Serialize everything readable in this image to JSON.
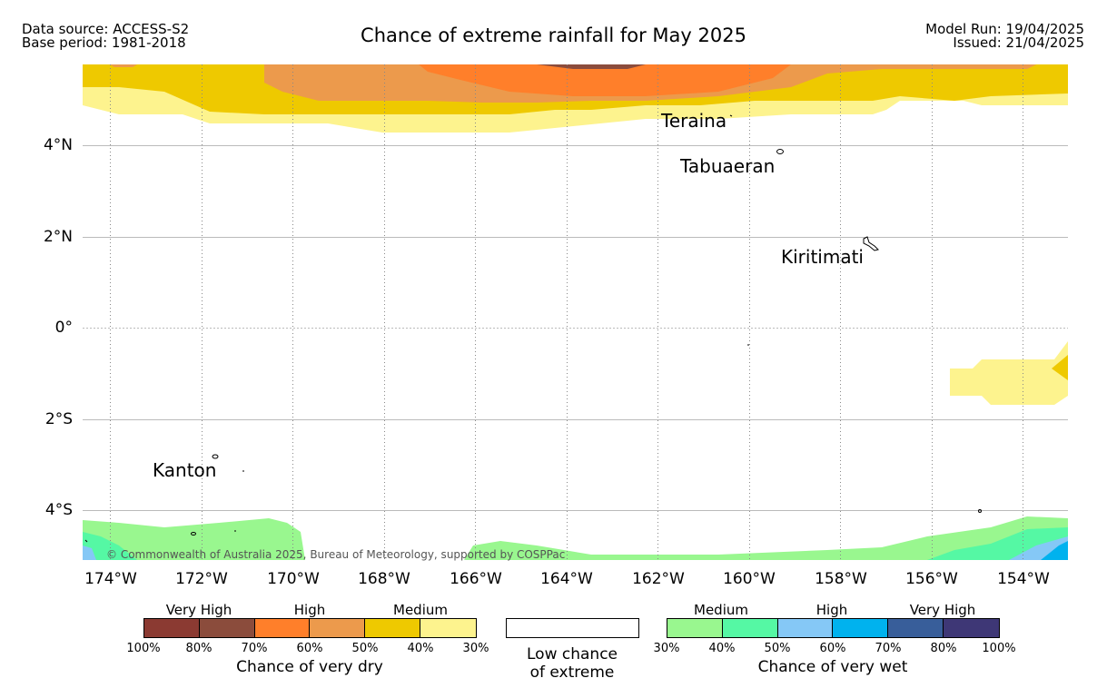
{
  "header": {
    "source": "Data source: ACCESS-S2",
    "base_period": "Base period: 1981-2018",
    "title": "Chance of extreme rainfall for May 2025",
    "model_run": "Model Run: 19/04/2025",
    "issued": "Issued: 21/04/2025"
  },
  "map": {
    "lat_ticks": [
      "4°N",
      "2°N",
      "0°",
      "2°S",
      "4°S"
    ],
    "lon_ticks": [
      "174°W",
      "172°W",
      "170°W",
      "168°W",
      "166°W",
      "164°W",
      "162°W",
      "160°W",
      "158°W",
      "156°W",
      "154°W"
    ],
    "places": [
      "Teraina",
      "Tabuaeran",
      "Kiritimati",
      "Kanton"
    ],
    "copyright": "© Commonwealth of Australia 2025, Bureau of Meteorology, supported by COSPPac"
  },
  "legend": {
    "dry": {
      "categories": [
        "Very High",
        "High",
        "Medium"
      ],
      "ticks": [
        "100%",
        "80%",
        "70%",
        "60%",
        "50%",
        "40%",
        "30%"
      ],
      "title": "Chance of very dry",
      "colors": [
        "#8b3a32",
        "#8b4c3c",
        "#ff7f2a",
        "#ec9a4c",
        "#eec900",
        "#fdf38e"
      ]
    },
    "low": {
      "line1": "Low chance",
      "line2": "of extreme"
    },
    "wet": {
      "categories": [
        "Medium",
        "High",
        "Very High"
      ],
      "ticks": [
        "30%",
        "40%",
        "50%",
        "60%",
        "70%",
        "80%",
        "100%"
      ],
      "title": "Chance of very wet",
      "colors": [
        "#99f78f",
        "#55f8a4",
        "#85c8f6",
        "#00b2ee",
        "#385e9a",
        "#3e3776"
      ]
    }
  }
}
